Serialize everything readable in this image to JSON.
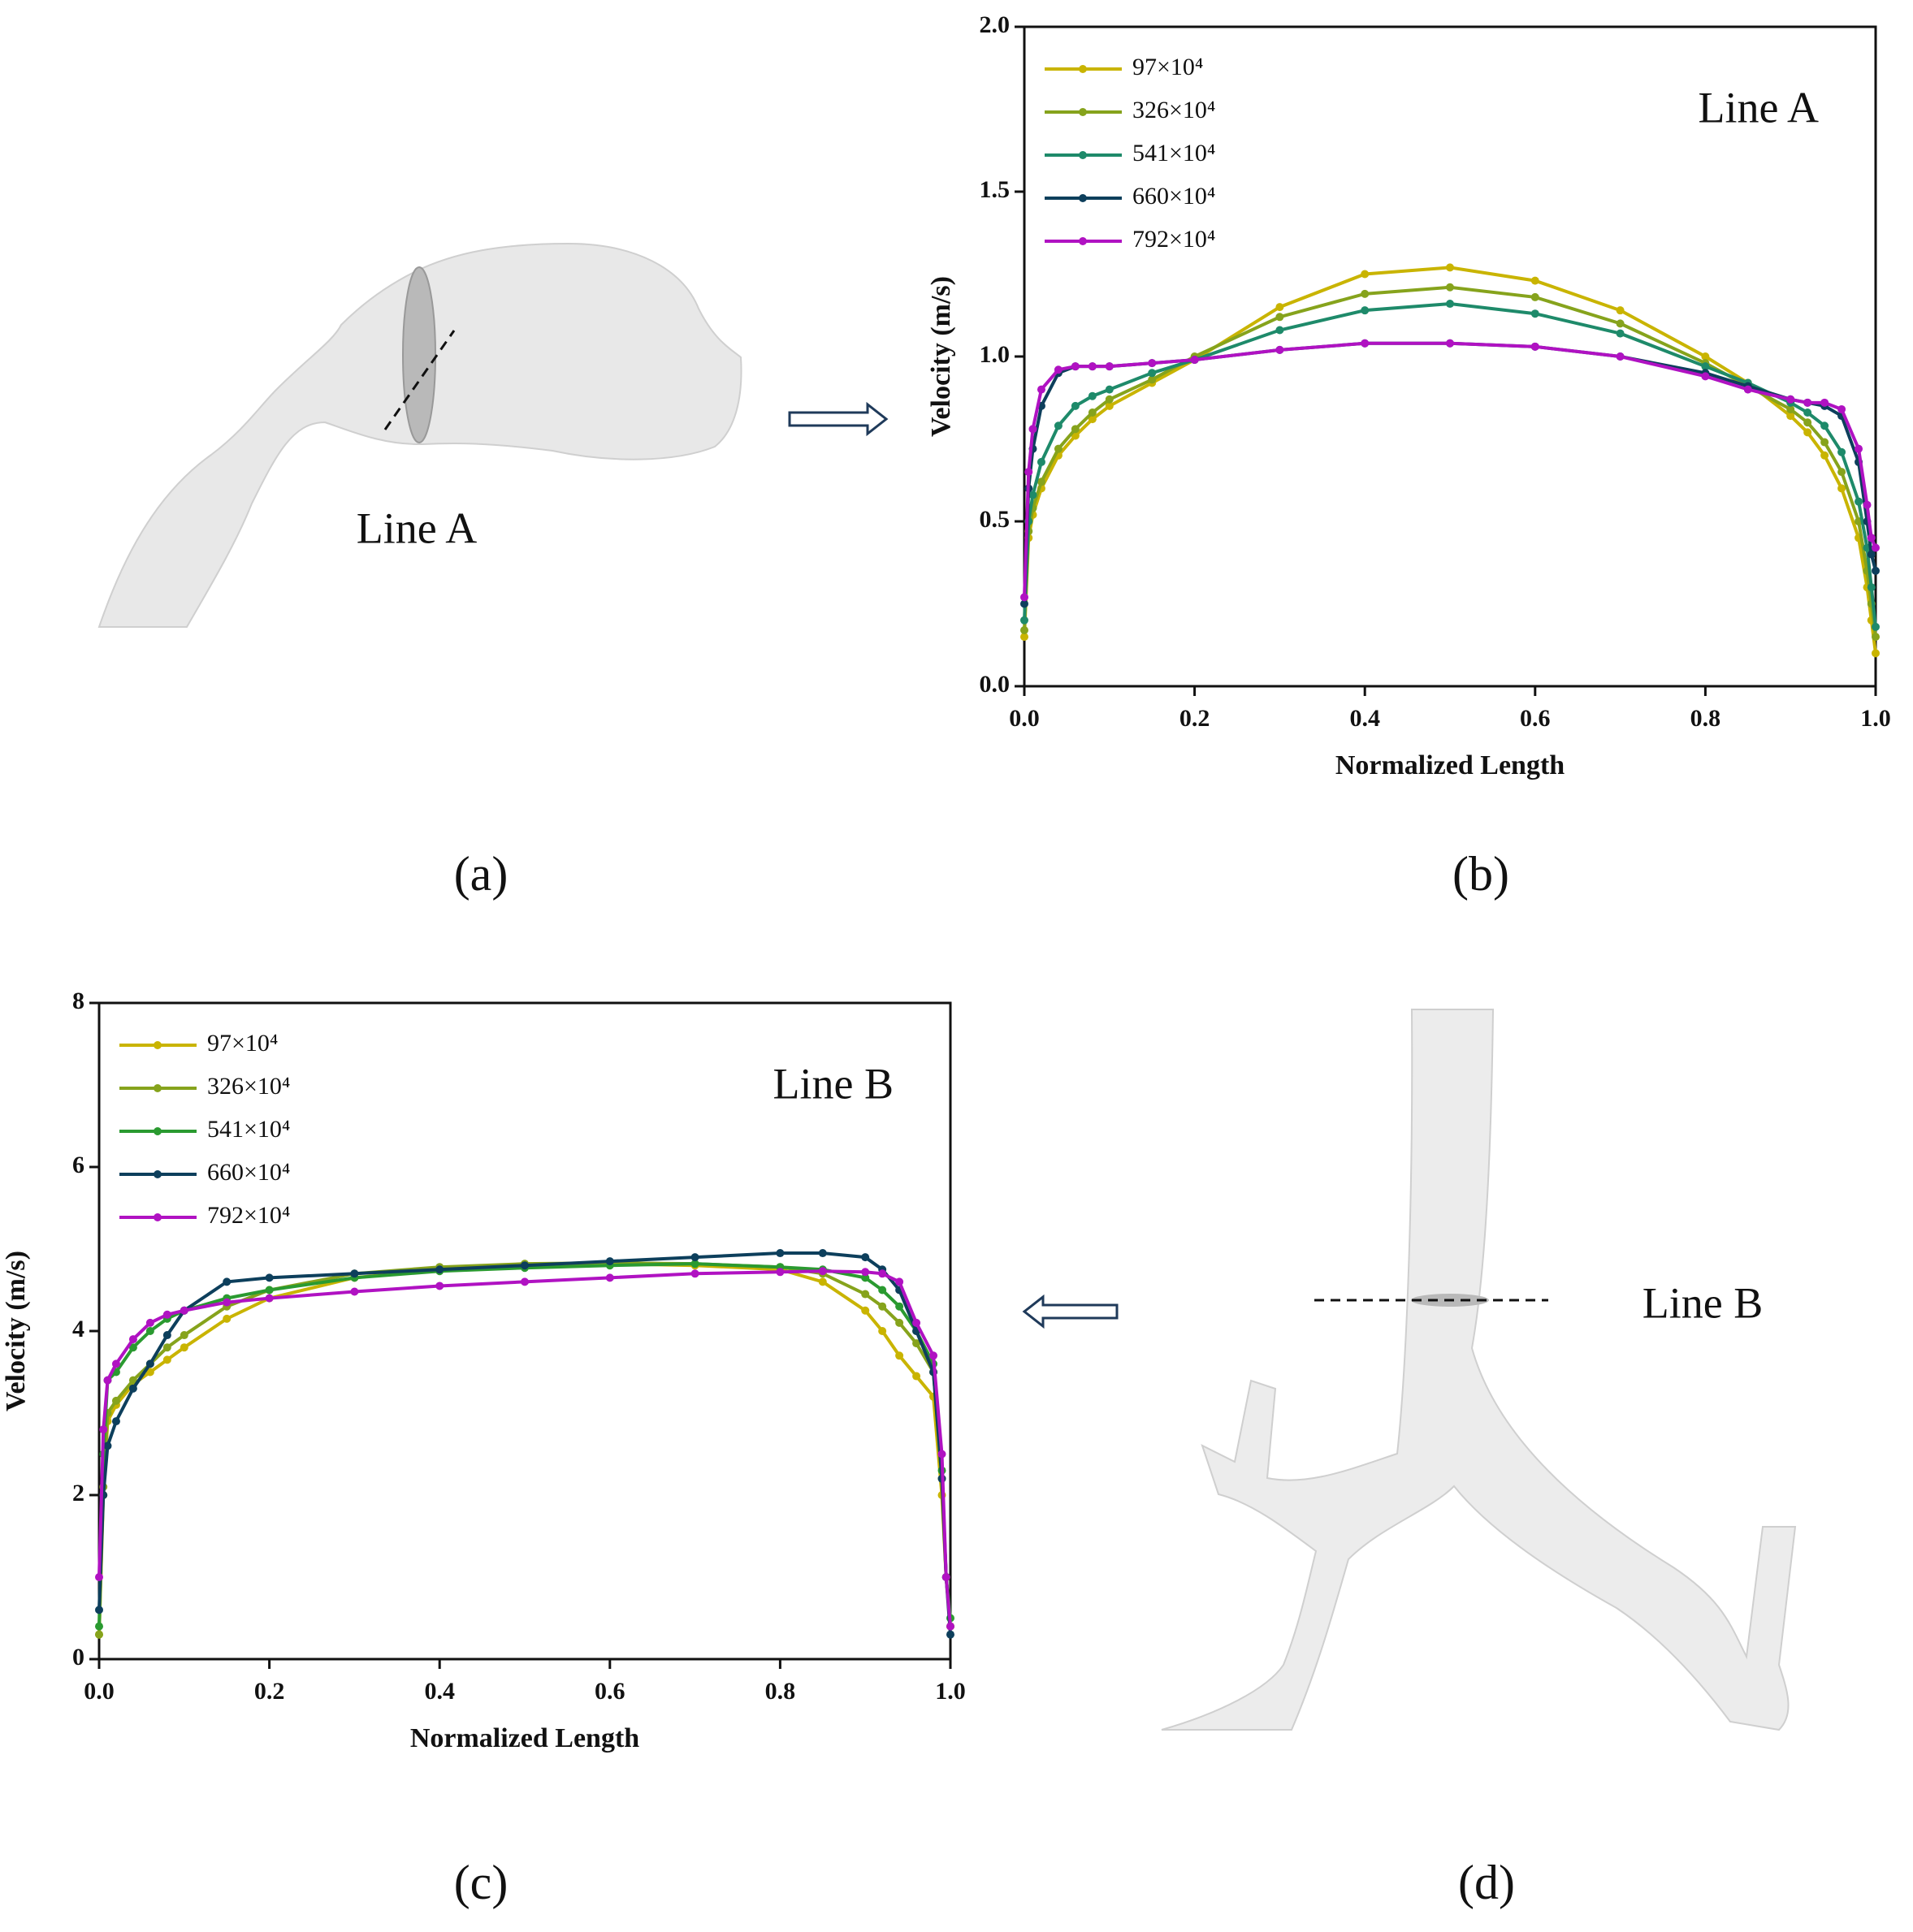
{
  "panels": {
    "a": {
      "label": "(a)",
      "annotation": "Line A"
    },
    "b": {
      "label": "(b)"
    },
    "c": {
      "label": "(c)"
    },
    "d": {
      "label": "(d)",
      "annotation": "Line B"
    }
  },
  "chart_data": [
    {
      "type": "line",
      "annotation": "Line A",
      "x_label": "Normalized Length",
      "y_label": "Velocity (m/s)",
      "xlim": [
        0,
        1
      ],
      "ylim": [
        0,
        2
      ],
      "xticks": [
        {
          "value": 0,
          "label": "0.0"
        },
        0.2,
        0.4,
        0.6,
        0.8,
        {
          "value": 1,
          "label": "1.0"
        }
      ],
      "yticks": [
        {
          "value": 0,
          "label": "0.0"
        },
        0.5,
        {
          "value": 1,
          "label": "1.0"
        },
        1.5,
        {
          "value": 2,
          "label": "2.0"
        }
      ],
      "legend": "upper left",
      "x": [
        0,
        0.005,
        0.01,
        0.02,
        0.04,
        0.06,
        0.08,
        0.1,
        0.15,
        0.2,
        0.3,
        0.4,
        0.5,
        0.6,
        0.7,
        0.8,
        0.85,
        0.9,
        0.92,
        0.94,
        0.96,
        0.98,
        0.99,
        0.995,
        1.0
      ],
      "series": [
        {
          "name": "97×10⁴",
          "color": "#c9b400",
          "values": [
            0.15,
            0.45,
            0.52,
            0.6,
            0.7,
            0.76,
            0.81,
            0.85,
            0.92,
            0.99,
            1.15,
            1.25,
            1.27,
            1.23,
            1.14,
            1.0,
            0.92,
            0.82,
            0.77,
            0.7,
            0.6,
            0.45,
            0.3,
            0.2,
            0.1
          ]
        },
        {
          "name": "326×10⁴",
          "color": "#86a31c",
          "values": [
            0.17,
            0.47,
            0.54,
            0.62,
            0.72,
            0.78,
            0.83,
            0.87,
            0.93,
            1.0,
            1.12,
            1.19,
            1.21,
            1.18,
            1.1,
            0.98,
            0.91,
            0.84,
            0.8,
            0.74,
            0.65,
            0.5,
            0.35,
            0.25,
            0.15
          ]
        },
        {
          "name": "541×10⁴",
          "color": "#1e8a6a",
          "values": [
            0.2,
            0.5,
            0.58,
            0.68,
            0.79,
            0.85,
            0.88,
            0.9,
            0.95,
            0.99,
            1.08,
            1.14,
            1.16,
            1.13,
            1.07,
            0.97,
            0.92,
            0.86,
            0.83,
            0.79,
            0.71,
            0.56,
            0.42,
            0.3,
            0.18
          ]
        },
        {
          "name": "660×10⁴",
          "color": "#0d3f5c",
          "values": [
            0.25,
            0.6,
            0.72,
            0.85,
            0.95,
            0.97,
            0.97,
            0.97,
            0.98,
            0.99,
            1.02,
            1.04,
            1.04,
            1.03,
            1.0,
            0.95,
            0.91,
            0.87,
            0.86,
            0.85,
            0.82,
            0.68,
            0.5,
            0.4,
            0.35
          ]
        },
        {
          "name": "792×10⁴",
          "color": "#b012c2",
          "values": [
            0.27,
            0.65,
            0.78,
            0.9,
            0.96,
            0.97,
            0.97,
            0.97,
            0.98,
            0.99,
            1.02,
            1.04,
            1.04,
            1.03,
            1.0,
            0.94,
            0.9,
            0.87,
            0.86,
            0.86,
            0.84,
            0.72,
            0.55,
            0.45,
            0.42
          ]
        }
      ]
    },
    {
      "type": "line",
      "annotation": "Line B",
      "x_label": "Normalized Length",
      "y_label": "Velocity (m/s)",
      "xlim": [
        0,
        1
      ],
      "ylim": [
        0,
        8
      ],
      "xticks": [
        {
          "value": 0,
          "label": "0.0"
        },
        0.2,
        0.4,
        0.6,
        0.8,
        {
          "value": 1,
          "label": "1.0"
        }
      ],
      "yticks": [
        0,
        2,
        4,
        6,
        8
      ],
      "legend": "upper left",
      "x": [
        0,
        0.005,
        0.01,
        0.02,
        0.04,
        0.06,
        0.08,
        0.1,
        0.15,
        0.2,
        0.3,
        0.4,
        0.5,
        0.6,
        0.7,
        0.8,
        0.85,
        0.9,
        0.92,
        0.94,
        0.96,
        0.98,
        0.99,
        0.995,
        1.0
      ],
      "series": [
        {
          "name": "97×10⁴",
          "color": "#c9b400",
          "values": [
            0.3,
            2.0,
            2.9,
            3.1,
            3.35,
            3.5,
            3.65,
            3.8,
            4.15,
            4.4,
            4.65,
            4.75,
            4.8,
            4.82,
            4.8,
            4.75,
            4.6,
            4.25,
            4.0,
            3.7,
            3.45,
            3.2,
            2.0,
            1.0,
            0.4
          ]
        },
        {
          "name": "326×10⁴",
          "color": "#86a31c",
          "values": [
            0.3,
            2.1,
            3.0,
            3.15,
            3.4,
            3.6,
            3.8,
            3.95,
            4.3,
            4.5,
            4.7,
            4.78,
            4.82,
            4.83,
            4.82,
            4.78,
            4.7,
            4.45,
            4.3,
            4.1,
            3.85,
            3.5,
            2.2,
            1.0,
            0.4
          ]
        },
        {
          "name": "541×10⁴",
          "color": "#2a9a30",
          "values": [
            0.4,
            2.5,
            3.4,
            3.5,
            3.8,
            4.0,
            4.15,
            4.25,
            4.4,
            4.5,
            4.65,
            4.73,
            4.77,
            4.8,
            4.82,
            4.78,
            4.75,
            4.65,
            4.5,
            4.3,
            4.0,
            3.6,
            2.3,
            1.0,
            0.5
          ]
        },
        {
          "name": "660×10⁴",
          "color": "#0d3f5c",
          "values": [
            0.6,
            2.0,
            2.6,
            2.9,
            3.3,
            3.6,
            3.95,
            4.25,
            4.6,
            4.65,
            4.7,
            4.75,
            4.8,
            4.85,
            4.9,
            4.95,
            4.95,
            4.9,
            4.75,
            4.5,
            4.0,
            3.5,
            2.2,
            1.0,
            0.3
          ]
        },
        {
          "name": "792×10⁴",
          "color": "#b012c2",
          "values": [
            1.0,
            2.8,
            3.4,
            3.6,
            3.9,
            4.1,
            4.2,
            4.25,
            4.35,
            4.4,
            4.48,
            4.55,
            4.6,
            4.65,
            4.7,
            4.72,
            4.73,
            4.72,
            4.7,
            4.6,
            4.1,
            3.7,
            2.5,
            1.0,
            0.4
          ]
        }
      ]
    }
  ]
}
